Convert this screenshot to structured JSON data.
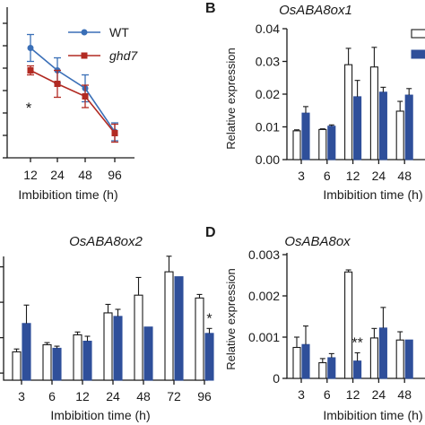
{
  "colors": {
    "wt": "#3a6fb7",
    "ghd7": "#b22a22",
    "open_bar": "#ffffff",
    "filled_bar": "#2f4f9a",
    "ink": "#1a1a1a"
  },
  "chart_data": [
    {
      "panel": "A",
      "panel_letter_visible": false,
      "type": "line",
      "title": "",
      "xlabel": "Imbibition time (h)",
      "ylabel": "",
      "categories": [
        "12",
        "24",
        "48",
        "96"
      ],
      "series": [
        {
          "name": "WT",
          "color_key": "wt",
          "marker": "circle",
          "values": [
            0.0295,
            0.0245,
            0.0205,
            0.0108
          ],
          "errors": [
            0.003,
            0.0028,
            0.003,
            0.002
          ]
        },
        {
          "name": "ghd7",
          "color_key": "ghd7",
          "marker": "square",
          "values": [
            0.0245,
            0.0215,
            0.0187,
            0.0105
          ],
          "errors": [
            0.001,
            0.003,
            0.0025,
            0.002
          ]
        }
      ],
      "annotations": [
        {
          "text": "*",
          "category": "12"
        }
      ],
      "legend": "top-right"
    },
    {
      "panel": "B",
      "type": "bar",
      "title": "OsABA8ox1",
      "xlabel": "Imbibition time (h)",
      "ylabel": "Relative expression",
      "ylim": [
        0,
        0.04
      ],
      "yticks": [
        "0.00",
        "0.01",
        "0.02",
        "0.03",
        "0.04"
      ],
      "categories": [
        "3",
        "6",
        "12",
        "24",
        "48"
      ],
      "series": [
        {
          "name": "",
          "style": "open",
          "values": [
            0.0088,
            0.0092,
            0.029,
            0.0283,
            0.0148
          ],
          "errors": [
            0.0003,
            0.0002,
            0.005,
            0.006,
            0.003
          ]
        },
        {
          "name": "",
          "style": "filled",
          "values": [
            0.0142,
            0.0102,
            0.0192,
            0.0206,
            0.0197
          ],
          "errors": [
            0.002,
            0.0004,
            0.005,
            0.0015,
            0.002
          ]
        }
      ],
      "legend": "top-right"
    },
    {
      "panel": "C",
      "panel_letter_visible": false,
      "type": "bar",
      "title": "OsABA8ox2",
      "xlabel": "Imbibition time (h)",
      "ylabel": "",
      "categories": [
        "3",
        "6",
        "12",
        "24",
        "48",
        "72",
        "96"
      ],
      "series": [
        {
          "name": "",
          "style": "open",
          "values": [
            0.8,
            0.9,
            1.04,
            1.35,
            1.6,
            1.93,
            1.56
          ],
          "errors": [
            0.04,
            0.03,
            0.04,
            0.12,
            0.25,
            0.22,
            0.05
          ]
        },
        {
          "name": "",
          "style": "filled",
          "values": [
            1.2,
            0.85,
            0.95,
            1.3,
            1.15,
            1.86,
            1.06
          ],
          "errors": [
            0.26,
            0.03,
            0.07,
            0.1,
            0.0,
            0.0,
            0.07
          ]
        }
      ],
      "annotations": [
        {
          "text": "*",
          "category": "96"
        }
      ]
    },
    {
      "panel": "D",
      "type": "bar",
      "title": "OsABA8ox",
      "xlabel": "Imbibition time (h)",
      "ylabel": "Relative expression",
      "ylim": [
        0,
        0.003
      ],
      "yticks": [
        "0",
        "0.001",
        "0.002",
        "0.003"
      ],
      "categories": [
        "3",
        "6",
        "12",
        "24",
        "48"
      ],
      "series": [
        {
          "name": "",
          "style": "open",
          "values": [
            0.00075,
            0.00038,
            0.00258,
            0.00098,
            0.00093
          ],
          "errors": [
            0.00025,
            0.0001,
            5e-05,
            0.00023,
            0.0002
          ]
        },
        {
          "name": "",
          "style": "filled",
          "values": [
            0.00082,
            0.0005,
            0.00042,
            0.00122,
            0.00093
          ],
          "errors": [
            0.00045,
            0.0001,
            0.0002,
            0.0005,
            0.0
          ]
        }
      ],
      "annotations": [
        {
          "text": "**",
          "category": "12"
        }
      ]
    }
  ]
}
